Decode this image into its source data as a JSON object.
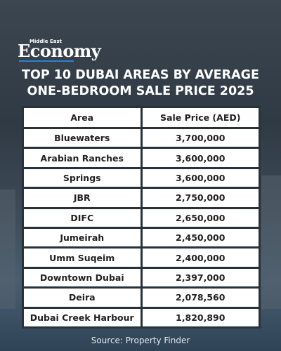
{
  "header": {
    "logo_small": "Middle East",
    "logo_big": "Economy",
    "title_lines": [
      "TOP 10 DUBAI AREAS BY AVERAGE",
      "ONE-BEDROOM SALE PRICE 2025"
    ]
  },
  "table": {
    "columns": [
      "Area",
      "Sale Price (AED)"
    ],
    "rows": [
      [
        "Bluewaters",
        "3,700,000"
      ],
      [
        "Arabian Ranches",
        "3,600,000"
      ],
      [
        "Springs",
        "3,600,000"
      ],
      [
        "JBR",
        "2,750,000"
      ],
      [
        "DIFC",
        "2,650,000"
      ],
      [
        "Jumeirah",
        "2,450,000"
      ],
      [
        "Umm Suqeim",
        "2,400,000"
      ],
      [
        "Downtown Dubai",
        "2,397,000"
      ],
      [
        "Deira",
        "2,078,560"
      ],
      [
        "Dubai Creek Harbour",
        "1,820,890"
      ]
    ]
  },
  "footer": {
    "source": "Source: Property Finder"
  }
}
